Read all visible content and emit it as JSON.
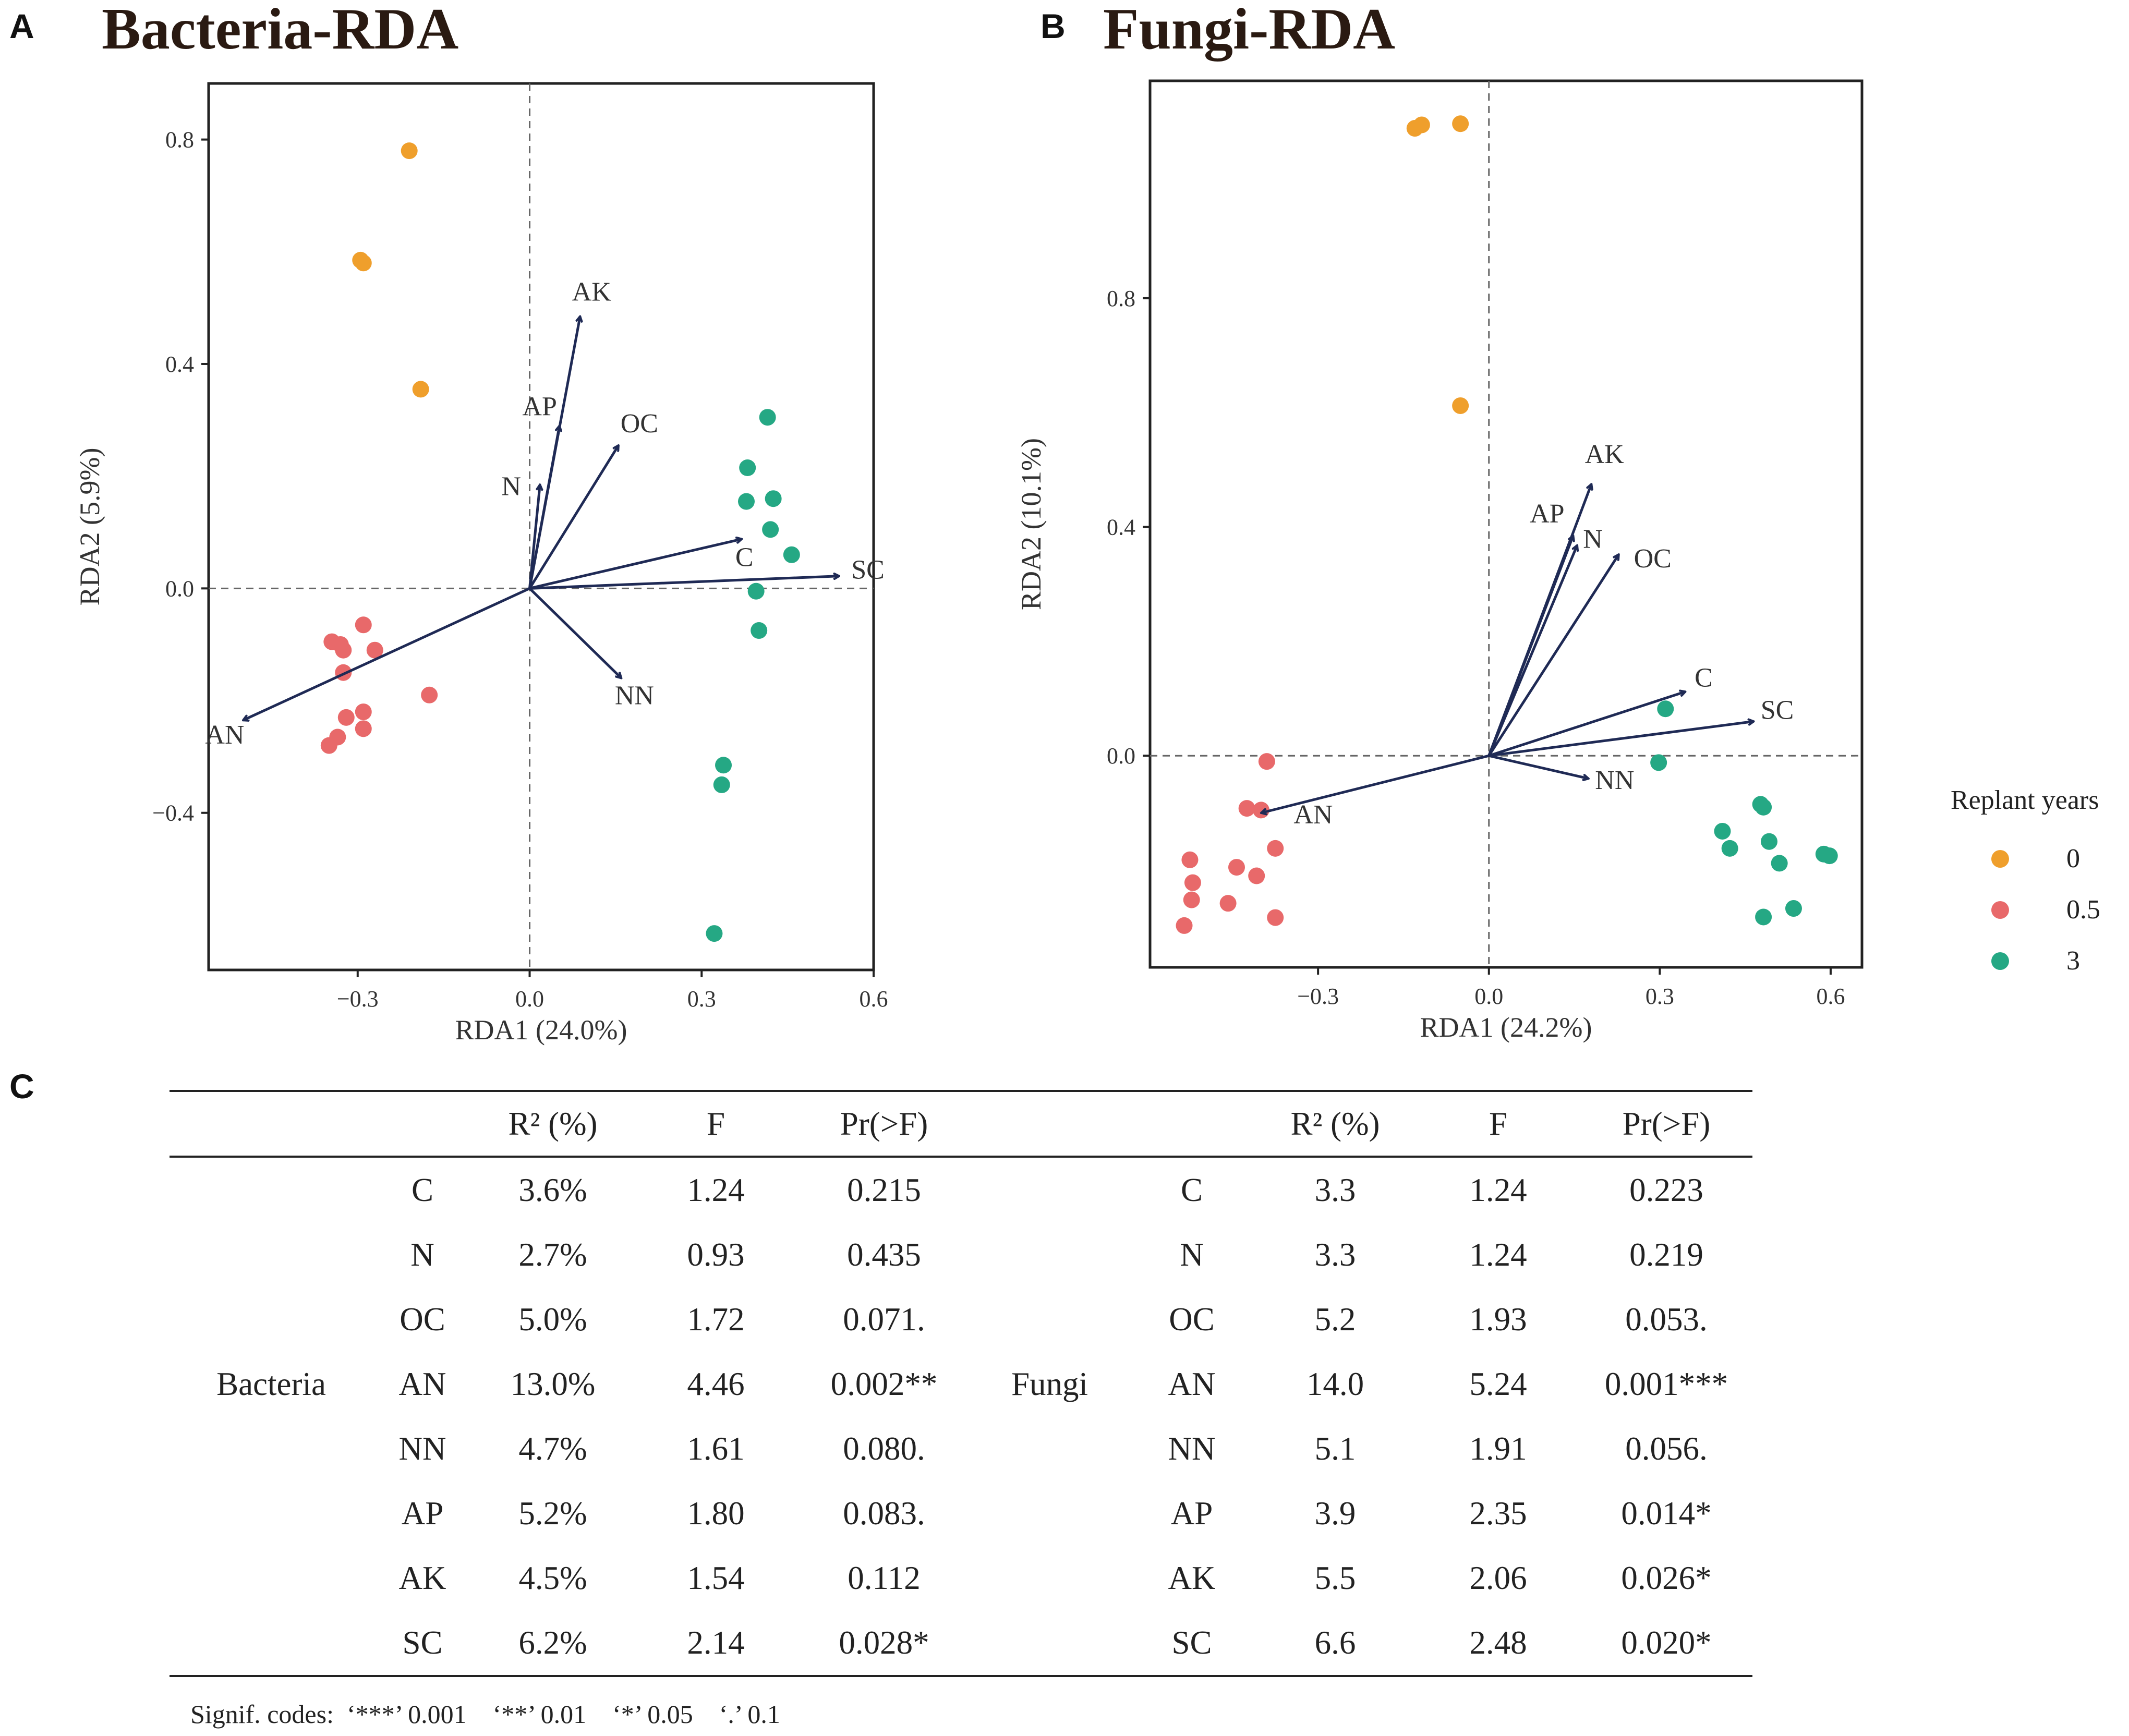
{
  "panels": {
    "a": {
      "letter": "A",
      "title": "Bacteria-RDA"
    },
    "b": {
      "letter": "B",
      "title": "Fungi-RDA"
    },
    "c": {
      "letter": "C"
    }
  },
  "chart_data": [
    {
      "type": "scatter",
      "subtype": "rda-biplot",
      "title": "Bacteria-RDA",
      "xlabel": "RDA1 (24.0%)",
      "ylabel": "RDA2 (5.9%)",
      "xlim": [
        -0.56,
        0.6
      ],
      "ylim": [
        -0.68,
        0.9
      ],
      "xticks": [
        -0.3,
        0.0,
        0.3,
        0.6
      ],
      "xtick_labels": [
        "−0.3",
        "0.0",
        "0.3",
        "0.6"
      ],
      "yticks": [
        -0.4,
        0.0,
        0.4,
        0.8
      ],
      "ytick_labels": [
        "−0.4",
        "0.0",
        "0.4",
        "0.8"
      ],
      "reference_lines": {
        "x": 0,
        "y": 0
      },
      "series": [
        {
          "name": "0",
          "color": "#ef9f2c",
          "points": [
            [
              -0.21,
              0.78
            ],
            [
              -0.295,
              0.585
            ],
            [
              -0.29,
              0.58
            ],
            [
              -0.19,
              0.355
            ]
          ]
        },
        {
          "name": "0.5",
          "color": "#e8696a",
          "points": [
            [
              -0.29,
              -0.065
            ],
            [
              -0.345,
              -0.095
            ],
            [
              -0.33,
              -0.1
            ],
            [
              -0.325,
              -0.11
            ],
            [
              -0.27,
              -0.11
            ],
            [
              -0.325,
              -0.15
            ],
            [
              -0.175,
              -0.19
            ],
            [
              -0.29,
              -0.22
            ],
            [
              -0.32,
              -0.23
            ],
            [
              -0.29,
              -0.25
            ],
            [
              -0.335,
              -0.265
            ],
            [
              -0.35,
              -0.28
            ]
          ]
        },
        {
          "name": "3",
          "color": "#25a884",
          "points": [
            [
              0.415,
              0.305
            ],
            [
              0.38,
              0.215
            ],
            [
              0.378,
              0.155
            ],
            [
              0.425,
              0.16
            ],
            [
              0.42,
              0.105
            ],
            [
              0.457,
              0.06
            ],
            [
              0.395,
              -0.005
            ],
            [
              0.4,
              -0.075
            ],
            [
              0.338,
              -0.315
            ],
            [
              0.335,
              -0.35
            ],
            [
              0.322,
              -0.615
            ]
          ]
        }
      ],
      "vectors": [
        {
          "label": "AK",
          "x": 0.088,
          "y": 0.485
        },
        {
          "label": "AP",
          "x": 0.052,
          "y": 0.29
        },
        {
          "label": "N",
          "x": 0.018,
          "y": 0.185
        },
        {
          "label": "OC",
          "x": 0.155,
          "y": 0.255
        },
        {
          "label": "C",
          "x": 0.37,
          "y": 0.088
        },
        {
          "label": "SC",
          "x": 0.54,
          "y": 0.022
        },
        {
          "label": "NN",
          "x": 0.16,
          "y": -0.16
        },
        {
          "label": "AN",
          "x": -0.5,
          "y": -0.235
        }
      ]
    },
    {
      "type": "scatter",
      "subtype": "rda-biplot",
      "title": "Fungi-RDA",
      "xlabel": "RDA1 (24.2%)",
      "ylabel": "RDA2 (10.1%)",
      "xlim": [
        -0.595,
        0.655
      ],
      "ylim": [
        -0.37,
        1.18
      ],
      "xticks": [
        -0.3,
        0.0,
        0.3,
        0.6
      ],
      "xtick_labels": [
        "−0.3",
        "0.0",
        "0.3",
        "0.6"
      ],
      "yticks": [
        0.0,
        0.4,
        0.8
      ],
      "ytick_labels": [
        "0.0",
        "0.4",
        "0.8"
      ],
      "reference_lines": {
        "x": 0,
        "y": 0
      },
      "series": [
        {
          "name": "0",
          "color": "#ef9f2c",
          "points": [
            [
              -0.13,
              1.097
            ],
            [
              -0.118,
              1.103
            ],
            [
              -0.05,
              1.105
            ],
            [
              -0.05,
              0.612
            ]
          ]
        },
        {
          "name": "0.5",
          "color": "#e8696a",
          "points": [
            [
              -0.39,
              -0.01
            ],
            [
              -0.425,
              -0.092
            ],
            [
              -0.4,
              -0.095
            ],
            [
              -0.375,
              -0.162
            ],
            [
              -0.525,
              -0.182
            ],
            [
              -0.443,
              -0.195
            ],
            [
              -0.408,
              -0.21
            ],
            [
              -0.52,
              -0.222
            ],
            [
              -0.522,
              -0.252
            ],
            [
              -0.458,
              -0.258
            ],
            [
              -0.375,
              -0.283
            ],
            [
              -0.535,
              -0.297
            ]
          ]
        },
        {
          "name": "3",
          "color": "#25a884",
          "points": [
            [
              0.31,
              0.082
            ],
            [
              0.298,
              -0.012
            ],
            [
              0.477,
              -0.085
            ],
            [
              0.482,
              -0.09
            ],
            [
              0.41,
              -0.132
            ],
            [
              0.423,
              -0.162
            ],
            [
              0.492,
              -0.15
            ],
            [
              0.51,
              -0.188
            ],
            [
              0.588,
              -0.172
            ],
            [
              0.598,
              -0.175
            ],
            [
              0.535,
              -0.267
            ],
            [
              0.482,
              -0.282
            ]
          ]
        }
      ],
      "vectors": [
        {
          "label": "AK",
          "x": 0.18,
          "y": 0.475
        },
        {
          "label": "AP",
          "x": 0.148,
          "y": 0.385
        },
        {
          "label": "N",
          "x": 0.155,
          "y": 0.368
        },
        {
          "label": "OC",
          "x": 0.228,
          "y": 0.352
        },
        {
          "label": "C",
          "x": 0.345,
          "y": 0.112
        },
        {
          "label": "SC",
          "x": 0.465,
          "y": 0.06
        },
        {
          "label": "NN",
          "x": 0.175,
          "y": -0.04
        },
        {
          "label": "AN",
          "x": -0.4,
          "y": -0.1
        }
      ]
    }
  ],
  "legend": {
    "title": "Replant years",
    "items": [
      {
        "label": "0",
        "color": "#ef9f2c"
      },
      {
        "label": "0.5",
        "color": "#e8696a"
      },
      {
        "label": "3",
        "color": "#25a884"
      }
    ]
  },
  "table": {
    "headers": {
      "r2": "R² (%)",
      "f": "F",
      "p": "Pr(>F)"
    },
    "groups": [
      {
        "name": "Bacteria",
        "rows": [
          {
            "var": "C",
            "r2": "3.6%",
            "f": "1.24",
            "p": "0.215"
          },
          {
            "var": "N",
            "r2": "2.7%",
            "f": "0.93",
            "p": "0.435"
          },
          {
            "var": "OC",
            "r2": "5.0%",
            "f": "1.72",
            "p": "0.071."
          },
          {
            "var": "AN",
            "r2": "13.0%",
            "f": "4.46",
            "p": "0.002**"
          },
          {
            "var": "NN",
            "r2": "4.7%",
            "f": "1.61",
            "p": "0.080."
          },
          {
            "var": "AP",
            "r2": "5.2%",
            "f": "1.80",
            "p": "0.083."
          },
          {
            "var": "AK",
            "r2": "4.5%",
            "f": "1.54",
            "p": "0.112"
          },
          {
            "var": "SC",
            "r2": "6.2%",
            "f": "2.14",
            "p": "0.028*"
          }
        ]
      },
      {
        "name": "Fungi",
        "rows": [
          {
            "var": "C",
            "r2": "3.3",
            "f": "1.24",
            "p": "0.223"
          },
          {
            "var": "N",
            "r2": "3.3",
            "f": "1.24",
            "p": "0.219"
          },
          {
            "var": "OC",
            "r2": "5.2",
            "f": "1.93",
            "p": "0.053."
          },
          {
            "var": "AN",
            "r2": "14.0",
            "f": "5.24",
            "p": "0.001***"
          },
          {
            "var": "NN",
            "r2": "5.1",
            "f": "1.91",
            "p": "0.056."
          },
          {
            "var": "AP",
            "r2": "3.9",
            "f": "2.35",
            "p": "0.014*"
          },
          {
            "var": "AK",
            "r2": "5.5",
            "f": "2.06",
            "p": "0.026*"
          },
          {
            "var": "SC",
            "r2": "6.6",
            "f": "2.48",
            "p": "0.020*"
          }
        ]
      }
    ],
    "signif_codes": "Signif. codes:  ‘***’ 0.001    ‘**’ 0.01    ‘*’ 0.05    ‘.’ 0.1"
  }
}
